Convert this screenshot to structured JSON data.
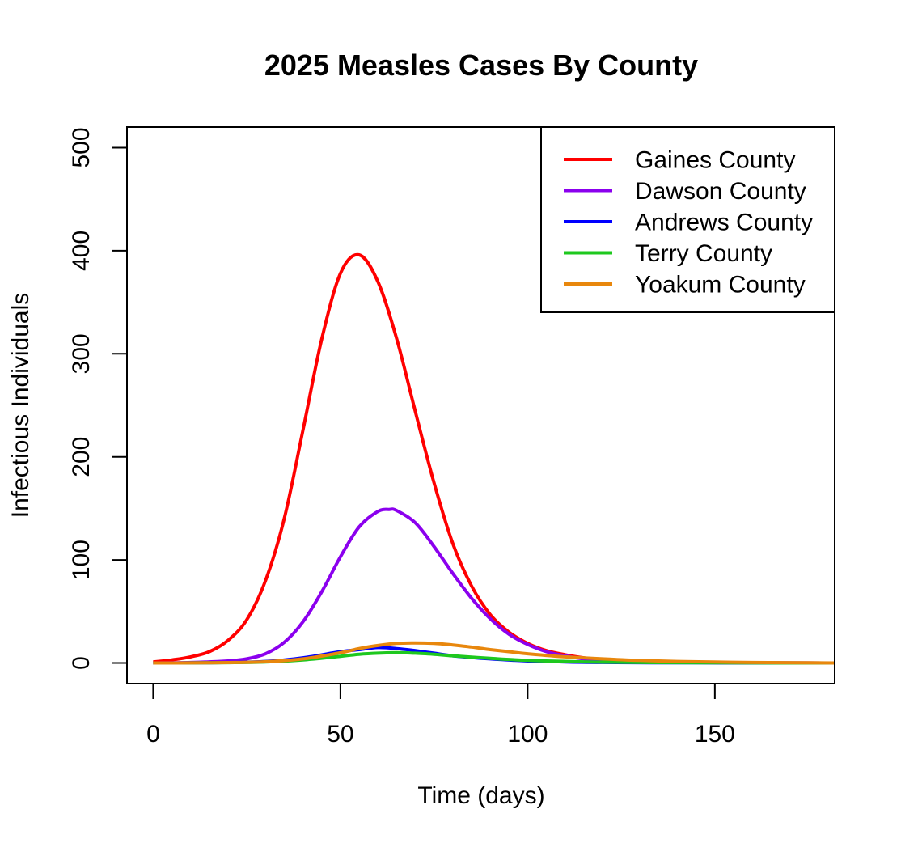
{
  "chart_data": {
    "type": "line",
    "title": "2025 Measles Cases By County",
    "xlabel": "Time (days)",
    "ylabel": "Infectious Individuals",
    "xlim": [
      -7,
      182
    ],
    "ylim": [
      -20,
      520
    ],
    "x_ticks": [
      0,
      50,
      100,
      150
    ],
    "y_ticks": [
      0,
      100,
      200,
      300,
      400,
      500
    ],
    "grid": false,
    "legend_position": "top-right",
    "series": [
      {
        "name": "Gaines County",
        "color": "#ff0000",
        "x": [
          0,
          5,
          10,
          15,
          20,
          25,
          30,
          35,
          40,
          45,
          50,
          55,
          60,
          65,
          70,
          75,
          80,
          85,
          90,
          95,
          100,
          105,
          110,
          115,
          120,
          130,
          140,
          150,
          160,
          170,
          182
        ],
        "y": [
          1,
          3,
          6,
          11,
          22,
          42,
          80,
          140,
          226,
          314,
          378,
          396,
          370,
          315,
          244,
          175,
          116,
          75,
          47,
          30,
          19,
          12,
          8,
          5,
          3,
          1.5,
          0.8,
          0.4,
          0.2,
          0.1,
          0
        ]
      },
      {
        "name": "Dawson County",
        "color": "#8b00ee",
        "x": [
          0,
          10,
          20,
          25,
          30,
          35,
          40,
          45,
          50,
          55,
          60,
          63,
          65,
          70,
          75,
          80,
          85,
          90,
          95,
          100,
          105,
          110,
          115,
          120,
          130,
          140,
          160,
          182
        ],
        "y": [
          0,
          0.5,
          2,
          4,
          9,
          20,
          40,
          69,
          103,
          132,
          147,
          149,
          148,
          136,
          113,
          87,
          63,
          43,
          28,
          18,
          11,
          7,
          4,
          2.5,
          1,
          0.5,
          0.1,
          0
        ]
      },
      {
        "name": "Andrews County",
        "color": "#0000ff",
        "x": [
          0,
          10,
          20,
          30,
          40,
          50,
          55,
          60,
          65,
          70,
          75,
          80,
          90,
          100,
          110,
          120,
          140,
          160,
          182
        ],
        "y": [
          0,
          0.1,
          0.5,
          1.5,
          5,
          11,
          13,
          15,
          14,
          12,
          9.5,
          7,
          4,
          2,
          1,
          0.5,
          0.2,
          0.1,
          0
        ]
      },
      {
        "name": "Terry County",
        "color": "#1ec81e",
        "x": [
          0,
          10,
          20,
          30,
          40,
          50,
          55,
          60,
          65,
          70,
          75,
          80,
          90,
          100,
          110,
          120,
          140,
          160,
          182
        ],
        "y": [
          0,
          0.1,
          0.3,
          1,
          3,
          6.5,
          8.5,
          9.5,
          10,
          9.5,
          8.5,
          7,
          4.5,
          2.5,
          1.5,
          0.8,
          0.3,
          0.1,
          0
        ]
      },
      {
        "name": "Yoakum County",
        "color": "#e8870d",
        "x": [
          0,
          10,
          20,
          30,
          40,
          50,
          55,
          60,
          65,
          70,
          75,
          80,
          85,
          90,
          95,
          100,
          110,
          120,
          130,
          140,
          160,
          182
        ],
        "y": [
          0,
          0.1,
          0.4,
          1.2,
          4,
          10,
          14,
          17,
          19,
          19.5,
          19,
          17.5,
          15.5,
          13,
          11,
          9,
          6,
          4,
          2.5,
          1.5,
          0.5,
          0
        ]
      }
    ]
  }
}
